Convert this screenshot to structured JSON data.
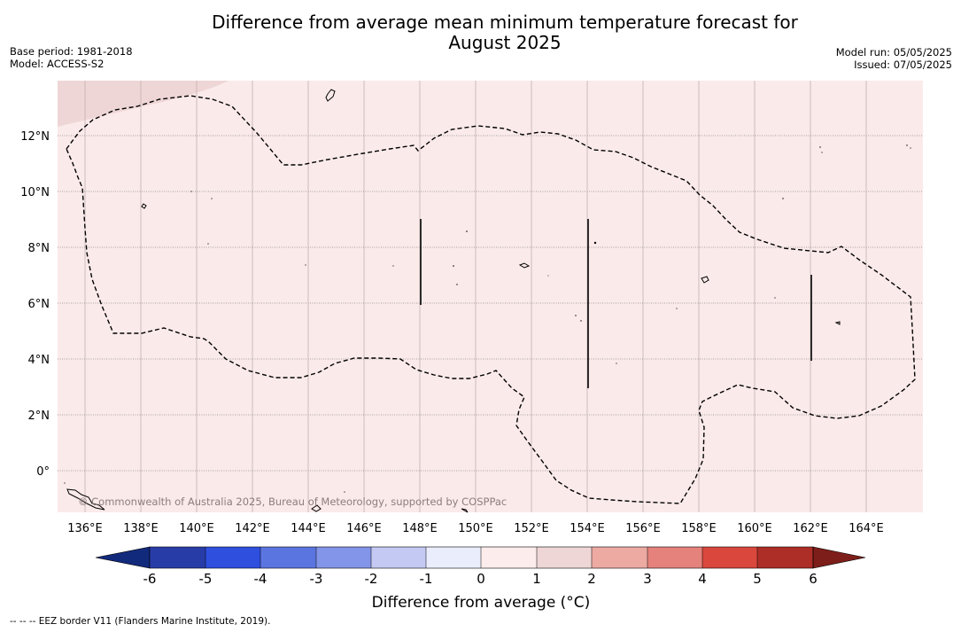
{
  "header": {
    "title_line1": "Difference from average mean minimum temperature forecast for",
    "title_line2": "August 2025",
    "base_period": "Base period: 1981-2018",
    "model": "Model: ACCESS-S2",
    "model_run": "Model run: 05/05/2025",
    "issued": "Issued: 07/05/2025"
  },
  "map": {
    "lon_labels": [
      "136°E",
      "138°E",
      "140°E",
      "142°E",
      "144°E",
      "146°E",
      "148°E",
      "150°E",
      "152°E",
      "154°E",
      "156°E",
      "158°E",
      "160°E",
      "162°E",
      "164°E"
    ],
    "lat_labels": [
      "12°N",
      "10°N",
      "8°N",
      "6°N",
      "4°N",
      "2°N",
      "0°"
    ],
    "copyright": "© Commonwealth of Australia 2025, Bureau of Meteorology, supported by COSPPac",
    "colors": {
      "background_anomaly": "#fbeaea",
      "upper_left_anomaly": "#efd6d6",
      "eez_border": "#000000"
    }
  },
  "colorbar": {
    "title": "Difference from average (°C)",
    "ticks": [
      "-6",
      "-5",
      "-4",
      "-3",
      "-2",
      "-1",
      "0",
      "1",
      "2",
      "3",
      "4",
      "5",
      "6"
    ],
    "colors": [
      "#122a7c",
      "#283ca8",
      "#2f4fdf",
      "#5b75e0",
      "#8395e8",
      "#c3c9f2",
      "#eaedfb",
      "#fcecec",
      "#efd6d6",
      "#ecaaa3",
      "#e5827b",
      "#d9473d",
      "#ad2d27",
      "#7e1e1a"
    ]
  },
  "footnote": "-- -- -- EEZ border V11 (Flanders Marine Institute, 2019)."
}
